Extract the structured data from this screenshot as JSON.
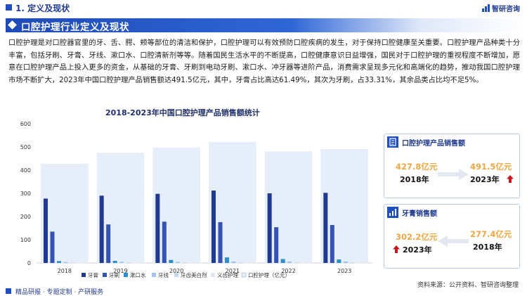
{
  "header": {
    "section_title": "1. 定义及现状",
    "brand": "智研咨询"
  },
  "banner": {
    "title": "口腔护理行业定义及现状"
  },
  "paragraph": "口腔护理是对口腔器官里的牙、舌、腭、颊等部位的清洁和保护，口腔护理可以有效预防口腔疾病的发生，对于保持口腔健康至关重要。口腔护理产品种类十分丰富，包括牙刷、牙膏、牙线、漱口水、口腔清新剂等等。随着国民生活水平的不断提高，口腔健康意识日益增强，国民对于口腔护理的重视程度不断增加，愿意在口腔护理产品上投入更多的资金，从基础的牙膏、牙刷到电动牙刷、漱口水、冲牙器等进阶产品，消费需求呈现多元化和高端化的趋势，推动我国口腔护理市场不断扩大，2023年中国口腔护理产品销售额达491.5亿元，其中，牙膏占比高达61.49%，其次为牙刷，占33.31%，其余品类占比均不足5%。",
  "chart_data": {
    "type": "bar",
    "title": "2018-2023年中国口腔护理产品销售额统计",
    "categories": [
      "2018",
      "2019",
      "2020",
      "2021",
      "2022",
      "2023"
    ],
    "ylim": [
      0,
      600
    ],
    "yticks": [
      0,
      100,
      200,
      300,
      400,
      500,
      600
    ],
    "legend_position": "bottom",
    "total_series": {
      "name": "口腔护理（亿元）",
      "values": [
        427.8,
        475,
        498,
        521,
        481,
        491.5
      ],
      "color": "#e6eef9"
    },
    "series": [
      {
        "name": "牙膏",
        "values": [
          277.4,
          290,
          298,
          312,
          300,
          302.2
        ],
        "color": "#1f3a8f"
      },
      {
        "name": "牙刷",
        "values": [
          135,
          166,
          178,
          176,
          154,
          163.7
        ],
        "color": "#3553b5"
      },
      {
        "name": "漱口水",
        "values": [
          8,
          9,
          13,
          24,
          17,
          15
        ],
        "color": "#2b8fc9"
      },
      {
        "name": "牙线",
        "values": [
          4,
          5,
          5,
          6,
          6,
          6
        ],
        "color": "#9fc5ea"
      },
      {
        "name": "牙齿美白剂",
        "values": [
          2,
          3,
          3,
          3,
          3,
          3
        ],
        "color": "#c4d8ef"
      },
      {
        "name": "义齿护理",
        "values": [
          1,
          1,
          1,
          1,
          1,
          1
        ],
        "color": "#dfe7f3"
      }
    ]
  },
  "cards": [
    {
      "label": "口腔护理产品销售额",
      "left_value": "427.8亿元",
      "left_year": "2018年",
      "right_value": "491.5亿元",
      "right_year": "2023年",
      "trend": "up"
    },
    {
      "label": "牙膏销售额",
      "left_value": "302.2亿元",
      "left_year": "2023年",
      "right_value": "277.4亿元",
      "right_year": "2018年",
      "trend": "up"
    }
  ],
  "source": "资料来源：公开资料、智研咨询整理",
  "footer": "精品研报 · 专题定制 · 产研服务"
}
